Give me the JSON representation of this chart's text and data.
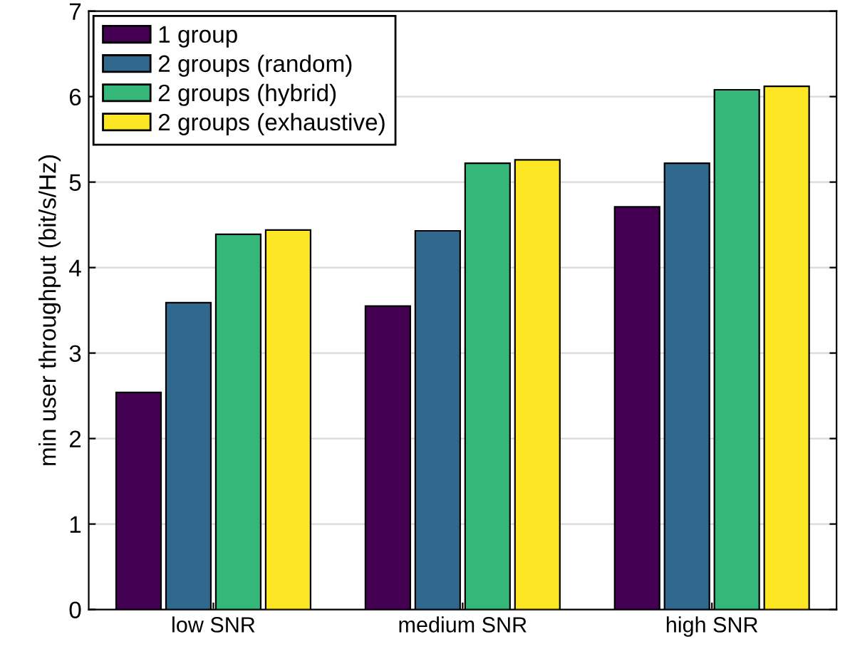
{
  "chart_data": {
    "type": "bar",
    "ylabel": "min user throughput (bit/s/Hz)",
    "categories": [
      "low SNR",
      "medium SNR",
      "high SNR"
    ],
    "series": [
      {
        "name": "1 group",
        "color": "#440154",
        "values": [
          2.54,
          3.55,
          4.71
        ]
      },
      {
        "name": "2 groups (random)",
        "color": "#31688e",
        "values": [
          3.59,
          4.43,
          5.22
        ]
      },
      {
        "name": "2 groups (hybrid)",
        "color": "#35b779",
        "values": [
          4.39,
          5.22,
          6.08
        ]
      },
      {
        "name": "2 groups (exhaustive)",
        "color": "#fde725",
        "values": [
          4.44,
          5.26,
          6.12
        ]
      }
    ],
    "ylim": [
      0,
      7
    ],
    "yticks": [
      0,
      1,
      2,
      3,
      4,
      5,
      6,
      7
    ],
    "grid": "y",
    "legend": "top left"
  }
}
